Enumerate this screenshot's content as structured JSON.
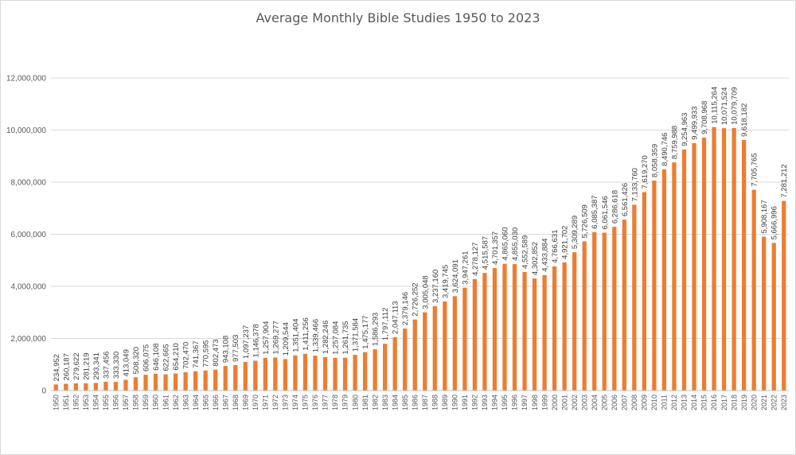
{
  "chart_data": {
    "type": "bar",
    "title": "Average Monthly Bible Studies 1950 to 2023",
    "xlabel": "",
    "ylabel": "",
    "ylim": [
      0,
      12000000
    ],
    "yticks": [
      "0",
      "2,000,000",
      "4,000,000",
      "6,000,000",
      "8,000,000",
      "10,000,000",
      "12,000,000"
    ],
    "grid": true,
    "legend": "none",
    "bar_color": "#ED7D31",
    "categories": [
      "1950",
      "1951",
      "1952",
      "1953",
      "1954",
      "1955",
      "1956",
      "1957",
      "1958",
      "1959",
      "1960",
      "1961",
      "1962",
      "1963",
      "1964",
      "1965",
      "1966",
      "1967",
      "1968",
      "1969",
      "1970",
      "1971",
      "1972",
      "1973",
      "1974",
      "1975",
      "1976",
      "1977",
      "1978",
      "1979",
      "1980",
      "1981",
      "1982",
      "1983",
      "1984",
      "1985",
      "1986",
      "1987",
      "1988",
      "1989",
      "1990",
      "1991",
      "1992",
      "1993",
      "1994",
      "1995",
      "1996",
      "1997",
      "1998",
      "1999",
      "2000",
      "2001",
      "2002",
      "2003",
      "2004",
      "2005",
      "2006",
      "2007",
      "2008",
      "2009",
      "2010",
      "2011",
      "2012",
      "2013",
      "2014",
      "2015",
      "2016",
      "2017",
      "2018",
      "2019",
      "2020",
      "2021",
      "2022",
      "2023"
    ],
    "values": [
      234952,
      260187,
      279622,
      281219,
      293341,
      337456,
      333330,
      413049,
      508320,
      606075,
      646108,
      622665,
      654210,
      702470,
      741367,
      770595,
      802473,
      943108,
      977503,
      1097237,
      1146378,
      1257904,
      1269277,
      1209544,
      1351404,
      1411256,
      1339466,
      1282246,
      1257084,
      1261735,
      1371584,
      1475177,
      1586293,
      1797112,
      2047113,
      2379146,
      2726252,
      3005048,
      3237160,
      3419745,
      3624091,
      3947261,
      4278127,
      4515587,
      4701357,
      4865060,
      4855030,
      4552589,
      4302852,
      4433884,
      4766631,
      4921702,
      5309289,
      5726509,
      6085387,
      6061546,
      6286618,
      6561426,
      7133760,
      7619270,
      8058359,
      8490746,
      8759988,
      9254963,
      9499933,
      9708968,
      10115264,
      10071524,
      10079709,
      9618182,
      7705765,
      5908167,
      5666996,
      7281212
    ],
    "data_labels": [
      "234,952",
      "260,187",
      "279,622",
      "281,219",
      "293,341",
      "337,456",
      "333,330",
      "413,049",
      "508,320",
      "606,075",
      "646,108",
      "622,665",
      "654,210",
      "702,470",
      "741,367",
      "770,595",
      "802,473",
      "943,108",
      "977,503",
      "1,097,237",
      "1,146,378",
      "1,257,904",
      "1,269,277",
      "1,209,544",
      "1,351,404",
      "1,411,256",
      "1,339,466",
      "1,282,246",
      "1,257,084",
      "1,261,735",
      "1,371,584",
      "1,475,177",
      "1,586,293",
      "1,797,112",
      "2,047,113",
      "2,379,146",
      "2,726,252",
      "3,005,048",
      "3,237,160",
      "3,419,745",
      "3,624,091",
      "3,947,261",
      "4,278,127",
      "4,515,587",
      "4,701,357",
      "4,865,060",
      "4,855,030",
      "4,552,589",
      "4,302,852",
      "4,433,884",
      "4,766,631",
      "4,921,702",
      "5,309,289",
      "5,726,509",
      "6,085,387",
      "6,061,546",
      "6,286,618",
      "6,561,426",
      "7,133,760",
      "7,619,270",
      "8,058,359",
      "8,490,746",
      "8,759,988",
      "9,254,963",
      "9,499,933",
      "9,708,968",
      "10,115,264",
      "10,071,524",
      "10,079,709",
      "9,618,182",
      "7,705,765",
      "5,908,167",
      "5,666,996",
      "7,281,212"
    ]
  }
}
